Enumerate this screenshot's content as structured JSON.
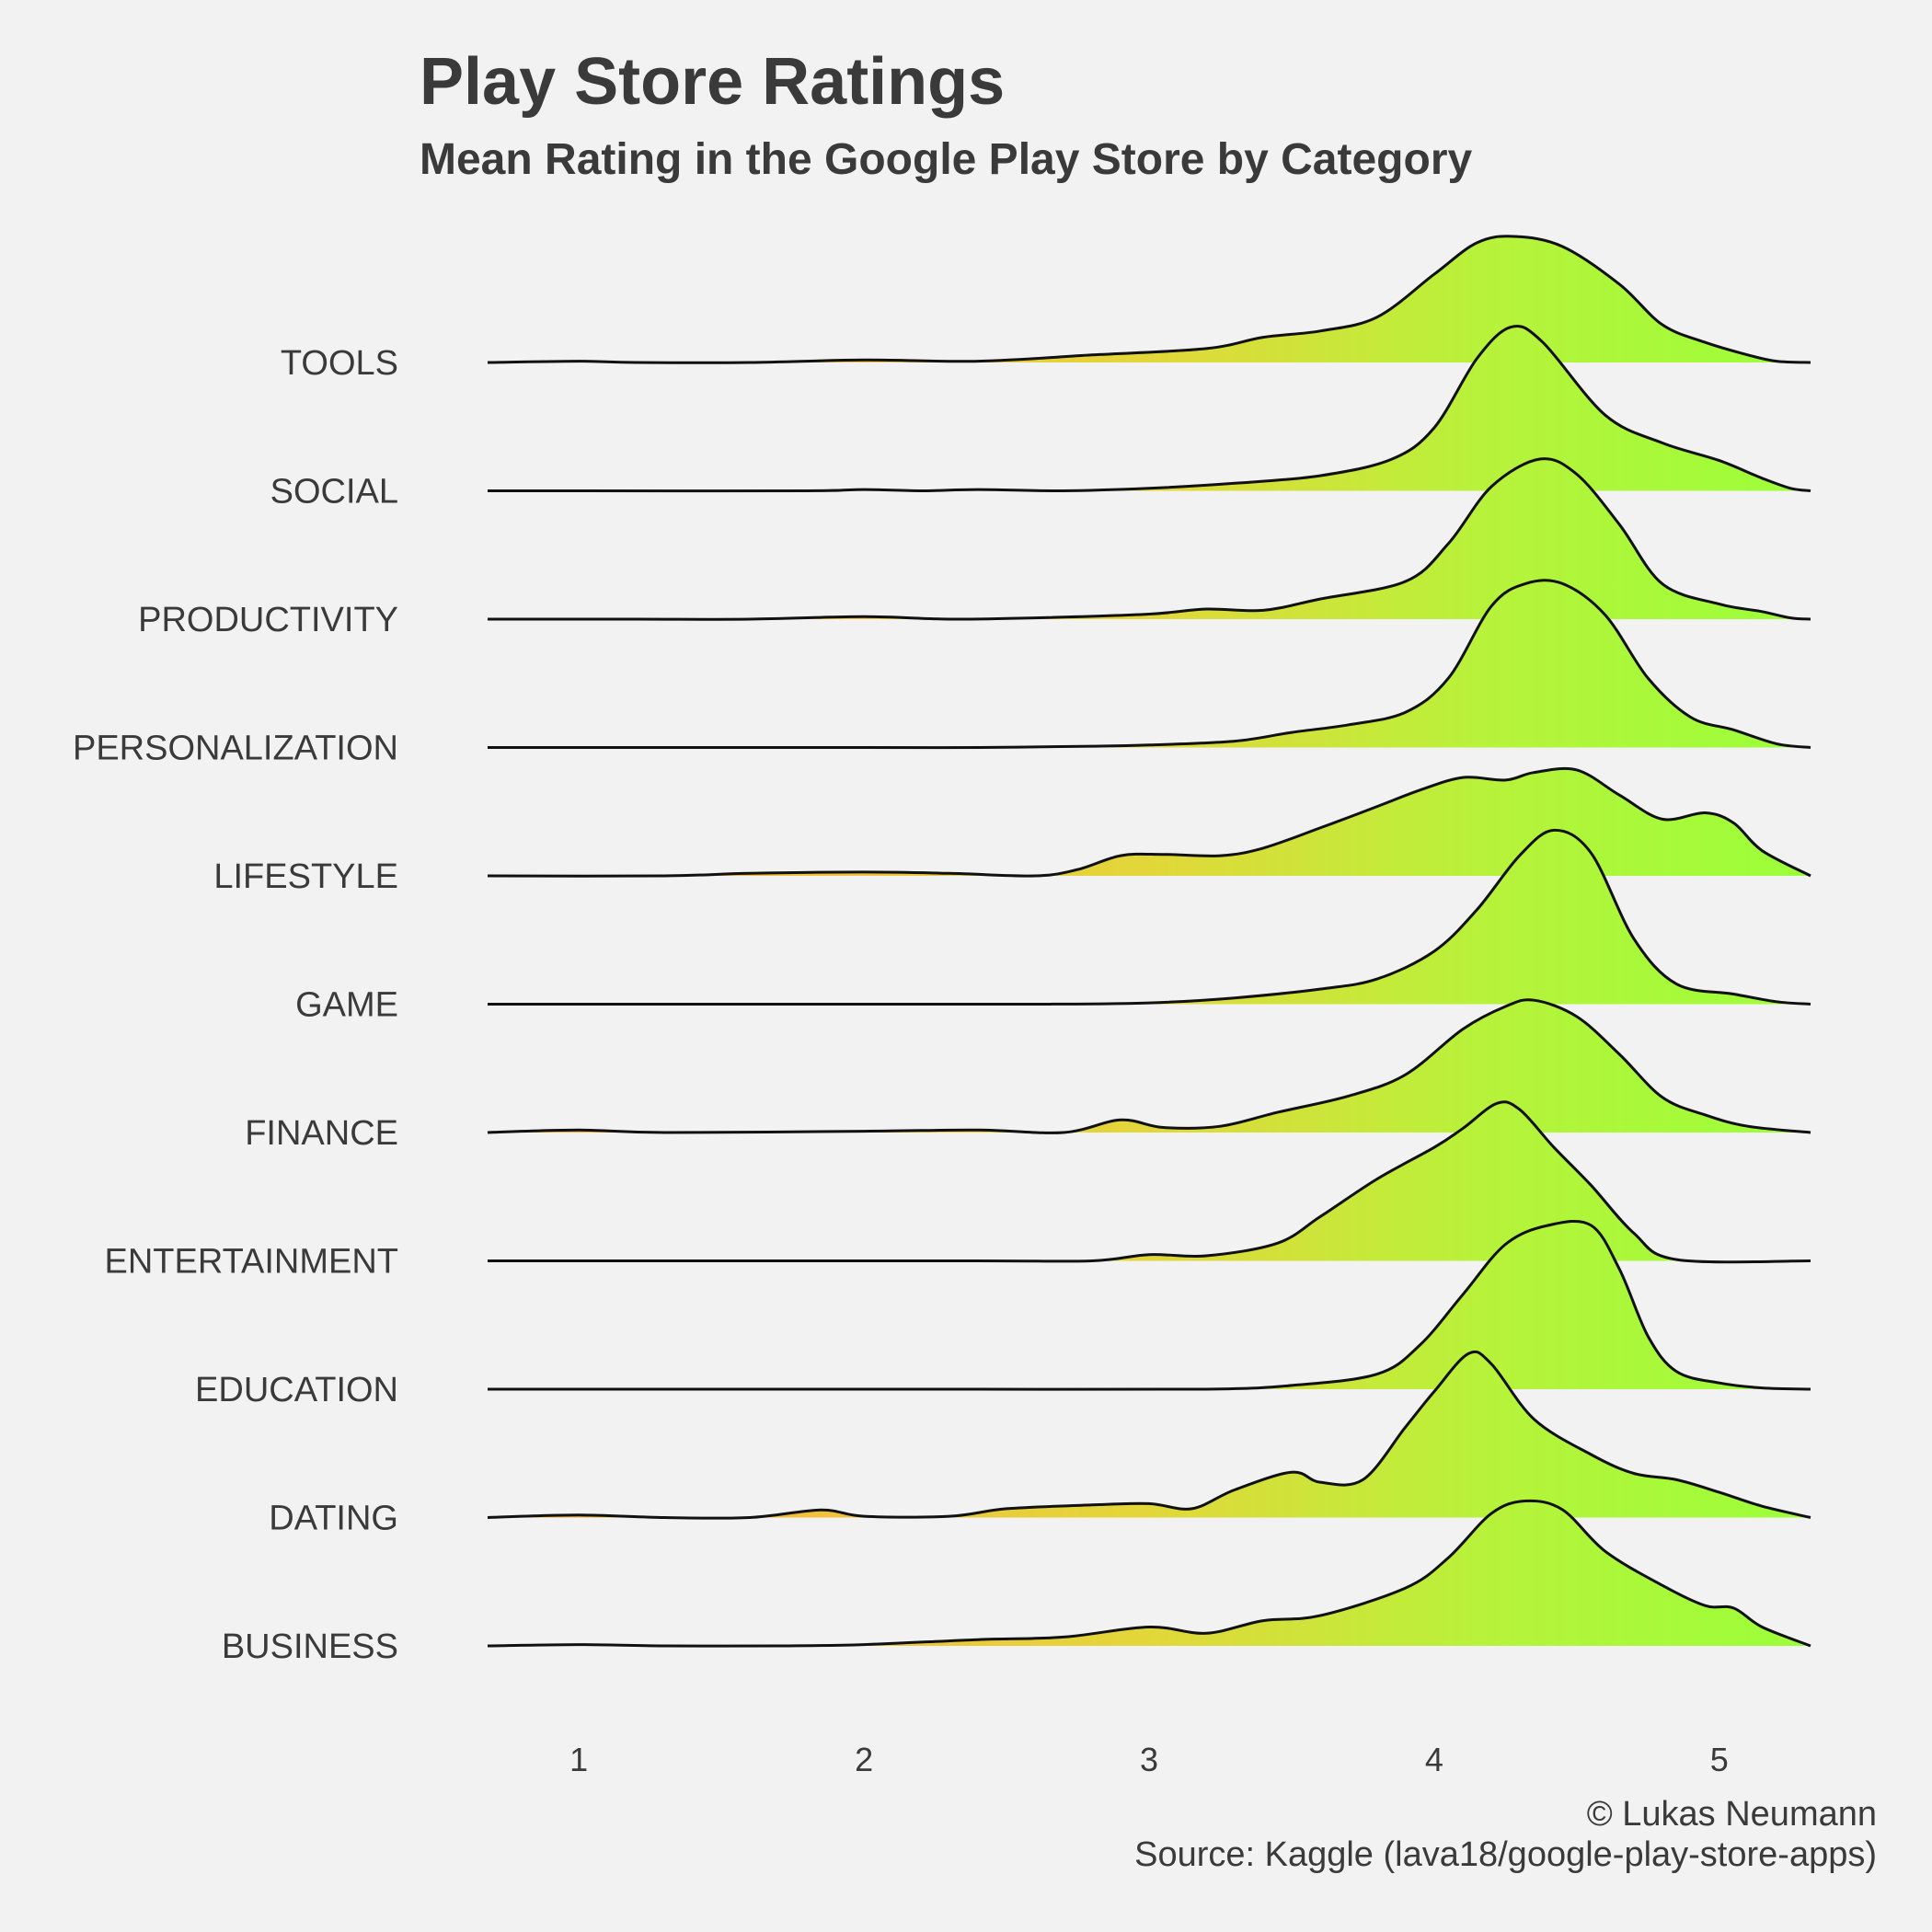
{
  "chart_data": {
    "type": "ridgeline",
    "title": "Play Store Ratings",
    "subtitle": "Mean Rating in the Google Play Store by Category",
    "caption_lines": [
      "© Lukas Neumann",
      "Source: Kaggle (lava18/google-play-store-apps)"
    ],
    "xlim": [
      0.68,
      5.32
    ],
    "x_ticks": [
      1,
      2,
      3,
      4,
      5
    ],
    "fill_gradient": [
      "#f0a53a",
      "#f2c13a",
      "#e2d73a",
      "#b8f23a",
      "#9bff3a"
    ],
    "categories": [
      "TOOLS",
      "SOCIAL",
      "PRODUCTIVITY",
      "PERSONALIZATION",
      "LIFESTYLE",
      "GAME",
      "FINANCE",
      "ENTERTAINMENT",
      "EDUCATION",
      "DATING",
      "BUSINESS"
    ],
    "series": [
      {
        "name": "TOOLS",
        "points": [
          [
            0.68,
            0
          ],
          [
            1.0,
            0.01
          ],
          [
            1.2,
            0
          ],
          [
            1.6,
            0
          ],
          [
            2.0,
            0.02
          ],
          [
            2.4,
            0.01
          ],
          [
            2.8,
            0.06
          ],
          [
            3.2,
            0.11
          ],
          [
            3.4,
            0.2
          ],
          [
            3.6,
            0.25
          ],
          [
            3.8,
            0.36
          ],
          [
            4.0,
            0.7
          ],
          [
            4.15,
            0.95
          ],
          [
            4.28,
            1.0
          ],
          [
            4.45,
            0.92
          ],
          [
            4.65,
            0.62
          ],
          [
            4.8,
            0.3
          ],
          [
            4.95,
            0.16
          ],
          [
            5.1,
            0.06
          ],
          [
            5.2,
            0.01
          ],
          [
            5.32,
            0
          ]
        ]
      },
      {
        "name": "SOCIAL",
        "points": [
          [
            0.68,
            0
          ],
          [
            1.0,
            0
          ],
          [
            1.8,
            0
          ],
          [
            2.0,
            0.01
          ],
          [
            2.2,
            0
          ],
          [
            2.4,
            0.01
          ],
          [
            2.7,
            0
          ],
          [
            3.0,
            0.02
          ],
          [
            3.3,
            0.06
          ],
          [
            3.6,
            0.12
          ],
          [
            3.85,
            0.25
          ],
          [
            4.0,
            0.5
          ],
          [
            4.15,
            1.05
          ],
          [
            4.27,
            1.3
          ],
          [
            4.38,
            1.18
          ],
          [
            4.6,
            0.6
          ],
          [
            4.8,
            0.38
          ],
          [
            5.0,
            0.24
          ],
          [
            5.15,
            0.1
          ],
          [
            5.25,
            0.02
          ],
          [
            5.32,
            0
          ]
        ]
      },
      {
        "name": "PRODUCTIVITY",
        "points": [
          [
            0.68,
            0
          ],
          [
            1.2,
            0
          ],
          [
            1.6,
            0
          ],
          [
            2.0,
            0.02
          ],
          [
            2.3,
            0
          ],
          [
            2.6,
            0.01
          ],
          [
            3.0,
            0.04
          ],
          [
            3.2,
            0.08
          ],
          [
            3.4,
            0.07
          ],
          [
            3.6,
            0.16
          ],
          [
            3.9,
            0.3
          ],
          [
            4.05,
            0.6
          ],
          [
            4.2,
            1.05
          ],
          [
            4.37,
            1.27
          ],
          [
            4.5,
            1.15
          ],
          [
            4.65,
            0.75
          ],
          [
            4.8,
            0.28
          ],
          [
            5.0,
            0.12
          ],
          [
            5.15,
            0.06
          ],
          [
            5.25,
            0.01
          ],
          [
            5.32,
            0
          ]
        ]
      },
      {
        "name": "PERSONALIZATION",
        "points": [
          [
            0.68,
            0
          ],
          [
            1.4,
            0
          ],
          [
            2.0,
            0
          ],
          [
            2.4,
            0
          ],
          [
            2.8,
            0.01
          ],
          [
            3.0,
            0.02
          ],
          [
            3.3,
            0.05
          ],
          [
            3.5,
            0.12
          ],
          [
            3.7,
            0.18
          ],
          [
            3.9,
            0.28
          ],
          [
            4.05,
            0.55
          ],
          [
            4.2,
            1.12
          ],
          [
            4.32,
            1.3
          ],
          [
            4.45,
            1.3
          ],
          [
            4.6,
            1.05
          ],
          [
            4.75,
            0.55
          ],
          [
            4.9,
            0.24
          ],
          [
            5.05,
            0.14
          ],
          [
            5.2,
            0.03
          ],
          [
            5.32,
            0
          ]
        ]
      },
      {
        "name": "LIFESTYLE",
        "points": [
          [
            0.68,
            0
          ],
          [
            1.3,
            0
          ],
          [
            1.6,
            0.02
          ],
          [
            2.0,
            0.03
          ],
          [
            2.3,
            0.02
          ],
          [
            2.6,
            0
          ],
          [
            2.75,
            0.05
          ],
          [
            2.9,
            0.16
          ],
          [
            3.05,
            0.17
          ],
          [
            3.25,
            0.16
          ],
          [
            3.4,
            0.22
          ],
          [
            3.6,
            0.38
          ],
          [
            3.8,
            0.55
          ],
          [
            3.95,
            0.68
          ],
          [
            4.1,
            0.78
          ],
          [
            4.25,
            0.76
          ],
          [
            4.35,
            0.82
          ],
          [
            4.5,
            0.84
          ],
          [
            4.65,
            0.64
          ],
          [
            4.8,
            0.45
          ],
          [
            4.95,
            0.5
          ],
          [
            5.05,
            0.42
          ],
          [
            5.15,
            0.2
          ],
          [
            5.32,
            0
          ]
        ]
      },
      {
        "name": "GAME",
        "points": [
          [
            0.68,
            0
          ],
          [
            1.4,
            0
          ],
          [
            2.0,
            0
          ],
          [
            2.6,
            0
          ],
          [
            3.0,
            0.01
          ],
          [
            3.3,
            0.05
          ],
          [
            3.6,
            0.12
          ],
          [
            3.8,
            0.2
          ],
          [
            4.0,
            0.42
          ],
          [
            4.15,
            0.75
          ],
          [
            4.3,
            1.18
          ],
          [
            4.42,
            1.38
          ],
          [
            4.55,
            1.2
          ],
          [
            4.7,
            0.52
          ],
          [
            4.85,
            0.16
          ],
          [
            5.05,
            0.08
          ],
          [
            5.2,
            0.02
          ],
          [
            5.32,
            0
          ]
        ]
      },
      {
        "name": "FINANCE",
        "points": [
          [
            0.68,
            0
          ],
          [
            1.0,
            0.02
          ],
          [
            1.3,
            0
          ],
          [
            2.0,
            0.01
          ],
          [
            2.4,
            0.02
          ],
          [
            2.7,
            0
          ],
          [
            2.9,
            0.1
          ],
          [
            3.05,
            0.04
          ],
          [
            3.25,
            0.05
          ],
          [
            3.45,
            0.16
          ],
          [
            3.7,
            0.29
          ],
          [
            3.9,
            0.46
          ],
          [
            4.1,
            0.82
          ],
          [
            4.25,
            1.0
          ],
          [
            4.35,
            1.05
          ],
          [
            4.5,
            0.92
          ],
          [
            4.65,
            0.62
          ],
          [
            4.8,
            0.28
          ],
          [
            4.95,
            0.14
          ],
          [
            5.1,
            0.05
          ],
          [
            5.32,
            0
          ]
        ]
      },
      {
        "name": "ENTERTAINMENT",
        "points": [
          [
            0.68,
            0
          ],
          [
            1.5,
            0
          ],
          [
            2.4,
            0
          ],
          [
            2.8,
            0
          ],
          [
            3.0,
            0.05
          ],
          [
            3.2,
            0.04
          ],
          [
            3.45,
            0.14
          ],
          [
            3.6,
            0.35
          ],
          [
            3.8,
            0.65
          ],
          [
            4.0,
            0.9
          ],
          [
            4.1,
            1.05
          ],
          [
            4.22,
            1.25
          ],
          [
            4.3,
            1.2
          ],
          [
            4.42,
            0.9
          ],
          [
            4.55,
            0.6
          ],
          [
            4.7,
            0.22
          ],
          [
            4.85,
            0.01
          ],
          [
            5.32,
            0
          ]
        ]
      },
      {
        "name": "EDUCATION",
        "points": [
          [
            0.68,
            0
          ],
          [
            1.5,
            0
          ],
          [
            2.4,
            0
          ],
          [
            3.2,
            0
          ],
          [
            3.5,
            0.03
          ],
          [
            3.8,
            0.12
          ],
          [
            3.95,
            0.35
          ],
          [
            4.1,
            0.75
          ],
          [
            4.25,
            1.15
          ],
          [
            4.4,
            1.3
          ],
          [
            4.55,
            1.3
          ],
          [
            4.65,
            0.95
          ],
          [
            4.75,
            0.42
          ],
          [
            4.85,
            0.14
          ],
          [
            5.0,
            0.05
          ],
          [
            5.15,
            0.01
          ],
          [
            5.32,
            0
          ]
        ]
      },
      {
        "name": "DATING",
        "points": [
          [
            0.68,
            0
          ],
          [
            1.0,
            0.02
          ],
          [
            1.3,
            0
          ],
          [
            1.6,
            0
          ],
          [
            1.85,
            0.06
          ],
          [
            2.0,
            0.01
          ],
          [
            2.3,
            0.01
          ],
          [
            2.5,
            0.07
          ],
          [
            2.8,
            0.1
          ],
          [
            3.0,
            0.11
          ],
          [
            3.15,
            0.07
          ],
          [
            3.3,
            0.22
          ],
          [
            3.5,
            0.36
          ],
          [
            3.6,
            0.28
          ],
          [
            3.75,
            0.3
          ],
          [
            3.9,
            0.72
          ],
          [
            4.0,
            1.0
          ],
          [
            4.12,
            1.3
          ],
          [
            4.2,
            1.22
          ],
          [
            4.35,
            0.78
          ],
          [
            4.55,
            0.5
          ],
          [
            4.7,
            0.35
          ],
          [
            4.85,
            0.3
          ],
          [
            5.0,
            0.2
          ],
          [
            5.15,
            0.09
          ],
          [
            5.32,
            0
          ]
        ]
      },
      {
        "name": "BUSINESS",
        "points": [
          [
            0.68,
            0
          ],
          [
            1.0,
            0.01
          ],
          [
            1.3,
            0
          ],
          [
            1.7,
            0
          ],
          [
            2.0,
            0.01
          ],
          [
            2.4,
            0.05
          ],
          [
            2.7,
            0.07
          ],
          [
            3.0,
            0.15
          ],
          [
            3.2,
            0.1
          ],
          [
            3.4,
            0.2
          ],
          [
            3.6,
            0.24
          ],
          [
            3.9,
            0.46
          ],
          [
            4.05,
            0.7
          ],
          [
            4.2,
            1.05
          ],
          [
            4.32,
            1.15
          ],
          [
            4.45,
            1.08
          ],
          [
            4.6,
            0.75
          ],
          [
            4.8,
            0.48
          ],
          [
            4.95,
            0.32
          ],
          [
            5.05,
            0.3
          ],
          [
            5.15,
            0.15
          ],
          [
            5.32,
            0
          ]
        ]
      }
    ]
  }
}
